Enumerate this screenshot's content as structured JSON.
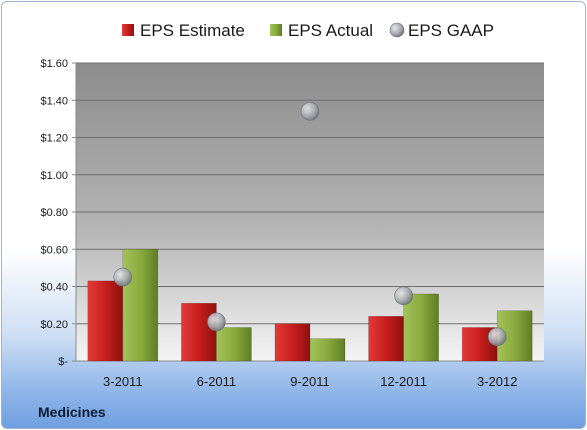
{
  "chart_data": {
    "type": "bar",
    "categories": [
      "3-2011",
      "6-2011",
      "9-2011",
      "12-2011",
      "3-2012"
    ],
    "series": [
      {
        "name": "EPS Estimate",
        "kind": "bar",
        "color": "#c81e1e",
        "values": [
          0.43,
          0.31,
          0.2,
          0.24,
          0.18
        ]
      },
      {
        "name": "EPS Actual",
        "kind": "bar",
        "color": "#8aac3e",
        "values": [
          0.6,
          0.18,
          0.12,
          0.36,
          0.27
        ]
      },
      {
        "name": "EPS GAAP",
        "kind": "marker",
        "color": "#a8adb3",
        "values": [
          0.45,
          0.21,
          1.34,
          0.35,
          0.13
        ]
      }
    ],
    "ylim": [
      0,
      1.6
    ],
    "y_ticks": [
      0,
      0.2,
      0.4,
      0.6,
      0.8,
      1.0,
      1.2,
      1.4,
      1.6
    ],
    "y_tick_labels": [
      "$-",
      "$0.20",
      "$0.40",
      "$0.60",
      "$0.80",
      "$1.00",
      "$1.20",
      "$1.40",
      "$1.60"
    ],
    "grid": true,
    "legend_position": "top",
    "plot_background": "#9a9a9a"
  },
  "caption": "Medicines"
}
